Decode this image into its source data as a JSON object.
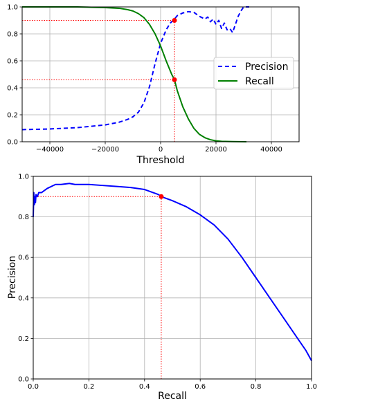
{
  "chart_data": [
    {
      "type": "line",
      "xlabel": "Threshold",
      "ylabel": "",
      "xlim": [
        -50000,
        50000
      ],
      "ylim": [
        0,
        1
      ],
      "grid": true,
      "x_ticks": [
        -40000,
        -20000,
        0,
        20000,
        40000
      ],
      "x_tick_labels": [
        "−40000",
        "−20000",
        "0",
        "20000",
        "40000"
      ],
      "y_ticks": [
        0,
        0.2,
        0.4,
        0.6,
        0.8,
        1.0
      ],
      "y_tick_labels": [
        "0.0",
        "0.2",
        "0.4",
        "0.6",
        "0.8",
        "1.0"
      ],
      "legend": {
        "position": "center-right"
      },
      "series": [
        {
          "name": "Precision",
          "style": "dashed",
          "color": "#0000ff",
          "x": [
            -50000,
            -40000,
            -30000,
            -20000,
            -15000,
            -12000,
            -10000,
            -8000,
            -6000,
            -4000,
            -2000,
            0,
            2000,
            3500,
            5000,
            6000,
            8000,
            10000,
            12000,
            14000,
            16000,
            17000,
            18000,
            19000,
            20000,
            21000,
            22000,
            23000,
            24000,
            25000,
            26000,
            27000,
            28000,
            29000,
            30000,
            32000
          ],
          "y": [
            0.09,
            0.095,
            0.105,
            0.125,
            0.145,
            0.165,
            0.185,
            0.22,
            0.29,
            0.41,
            0.58,
            0.73,
            0.83,
            0.88,
            0.91,
            0.935,
            0.955,
            0.965,
            0.96,
            0.93,
            0.91,
            0.925,
            0.89,
            0.91,
            0.87,
            0.9,
            0.84,
            0.88,
            0.83,
            0.84,
            0.81,
            0.87,
            0.93,
            0.97,
            1.0,
            1.0
          ]
        },
        {
          "name": "Recall",
          "style": "solid",
          "color": "#008000",
          "x": [
            -50000,
            -30000,
            -20000,
            -15000,
            -12000,
            -10000,
            -8000,
            -6000,
            -4000,
            -2000,
            0,
            2000,
            4000,
            5000,
            6000,
            8000,
            10000,
            12000,
            14000,
            16000,
            18000,
            20000,
            22000,
            26000,
            31000
          ],
          "y": [
            1.0,
            1.0,
            0.995,
            0.99,
            0.98,
            0.97,
            0.95,
            0.92,
            0.87,
            0.8,
            0.71,
            0.6,
            0.5,
            0.46,
            0.38,
            0.26,
            0.17,
            0.1,
            0.055,
            0.03,
            0.015,
            0.007,
            0.003,
            0.001,
            0.0
          ]
        }
      ],
      "markers": [
        {
          "x": 5000,
          "y": 0.9,
          "color": "#ff0000"
        },
        {
          "x": 5000,
          "y": 0.46,
          "color": "#ff0000"
        }
      ],
      "reference_lines": [
        {
          "from": [
            -50000,
            0.9
          ],
          "to": [
            5000,
            0.9
          ]
        },
        {
          "from": [
            -50000,
            0.46
          ],
          "to": [
            5000,
            0.46
          ]
        },
        {
          "from": [
            5000,
            0
          ],
          "to": [
            5000,
            0.9
          ]
        }
      ]
    },
    {
      "type": "line",
      "xlabel": "Recall",
      "ylabel": "Precision",
      "xlim": [
        0,
        1
      ],
      "ylim": [
        0,
        1
      ],
      "grid": true,
      "x_ticks": [
        0,
        0.2,
        0.4,
        0.6,
        0.8,
        1.0
      ],
      "x_tick_labels": [
        "0.0",
        "0.2",
        "0.4",
        "0.6",
        "0.8",
        "1.0"
      ],
      "y_ticks": [
        0,
        0.2,
        0.4,
        0.6,
        0.8,
        1.0
      ],
      "y_tick_labels": [
        "0.0",
        "0.2",
        "0.4",
        "0.6",
        "0.8",
        "1.0"
      ],
      "series": [
        {
          "style": "solid",
          "color": "#0000ff",
          "x": [
            0.0,
            0.002,
            0.004,
            0.006,
            0.008,
            0.01,
            0.015,
            0.02,
            0.03,
            0.05,
            0.08,
            0.1,
            0.13,
            0.15,
            0.2,
            0.25,
            0.3,
            0.35,
            0.4,
            0.45,
            0.46,
            0.5,
            0.55,
            0.6,
            0.65,
            0.7,
            0.75,
            0.8,
            0.82,
            0.85,
            0.9,
            0.95,
            0.98,
            1.0
          ],
          "y": [
            0.8,
            0.92,
            0.86,
            0.9,
            0.87,
            0.91,
            0.9,
            0.92,
            0.92,
            0.94,
            0.96,
            0.96,
            0.965,
            0.96,
            0.96,
            0.955,
            0.95,
            0.945,
            0.935,
            0.91,
            0.9,
            0.88,
            0.85,
            0.81,
            0.76,
            0.69,
            0.6,
            0.5,
            0.46,
            0.4,
            0.3,
            0.2,
            0.14,
            0.09
          ]
        }
      ],
      "markers": [
        {
          "x": 0.46,
          "y": 0.9,
          "color": "#ff0000"
        }
      ],
      "reference_lines": [
        {
          "from": [
            0,
            0.9
          ],
          "to": [
            0.46,
            0.9
          ]
        },
        {
          "from": [
            0.46,
            0
          ],
          "to": [
            0.46,
            0.9
          ]
        }
      ]
    }
  ]
}
